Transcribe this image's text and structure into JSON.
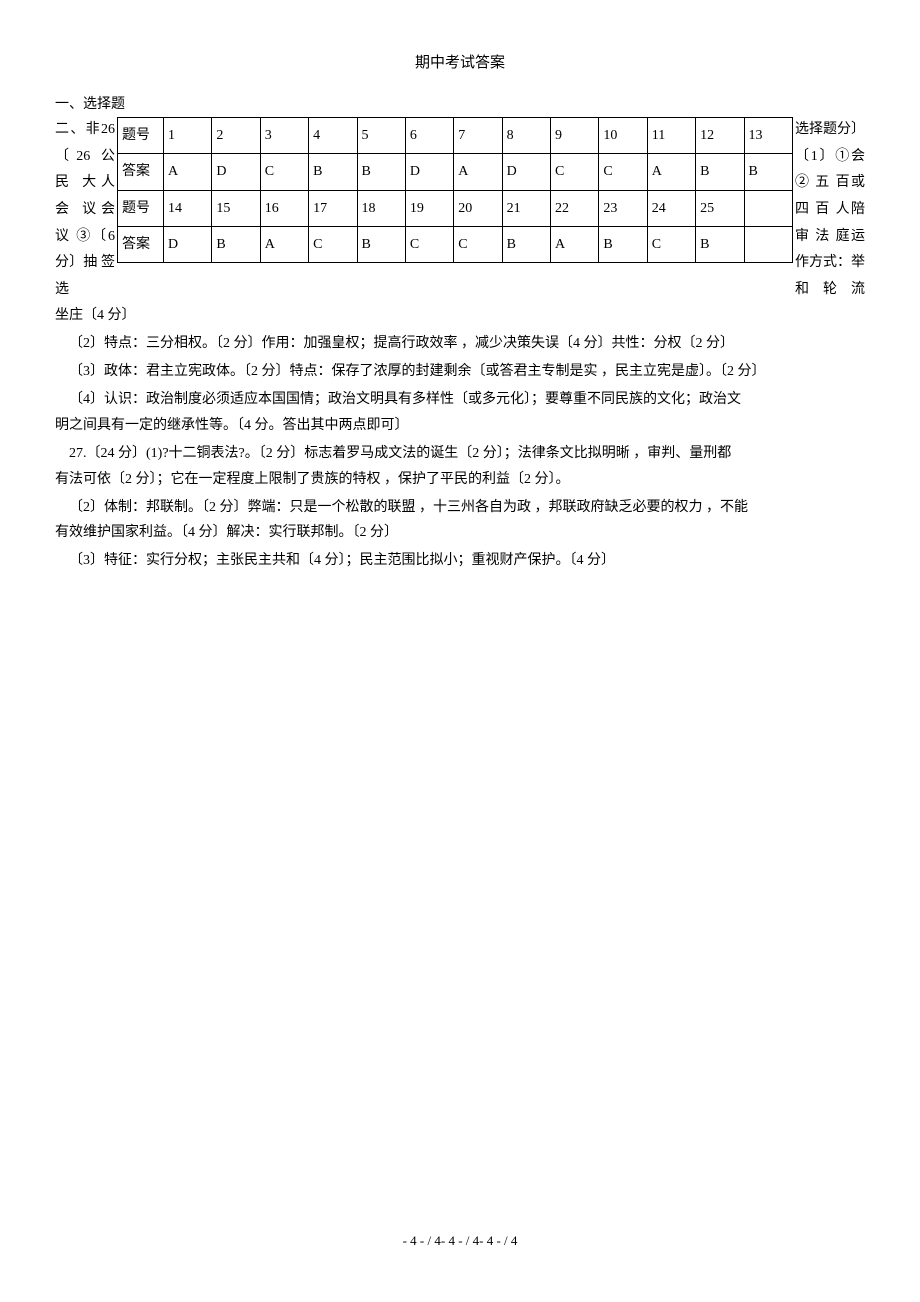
{
  "title": "期中考试答案",
  "section1_label": "一、选择题",
  "left_wrap_text": "二、非26〔26 公 民 大人 会 议会 议 ③〔6 分〕抽 签 选",
  "right_wrap_text": "选择题分〕〔1〕①会 ② 五 百或 四 百 人陪 审 法 庭运作方式：举 和 轮 流",
  "below_table": "坐庄〔4 分〕",
  "answer_table": {
    "header_label_1": "题号",
    "header_label_2": "答案",
    "row1_nums": [
      "1",
      "2",
      "3",
      "4",
      "5",
      "6",
      "7",
      "8",
      "9",
      "10",
      "11",
      "12",
      "13"
    ],
    "row1_ans": [
      "A",
      "D",
      "C",
      "B",
      "B",
      "D",
      "A",
      "D",
      "C",
      "C",
      "A",
      "B",
      "B"
    ],
    "row2_nums": [
      "14",
      "15",
      "16",
      "17",
      "18",
      "19",
      "20",
      "21",
      "22",
      "23",
      "24",
      "25",
      ""
    ],
    "row2_ans": [
      "D",
      "B",
      "A",
      "C",
      "B",
      "C",
      "C",
      "B",
      "A",
      "B",
      "C",
      "B",
      ""
    ]
  },
  "paragraphs": {
    "p2": "〔2〕特点：三分相权。〔2 分〕作用：加强皇权；提高行政效率 ，减少决策失误〔4 分〕共性：分权〔2 分〕",
    "p3": "〔3〕政体：君主立宪政体。〔2 分〕特点：保存了浓厚的封建剩余〔或答君主专制是实 ，民主立宪是虚〕。〔2 分〕",
    "p4a": "〔4〕认识：政治制度必须适应本国国情；政治文明具有多样性〔或多元化〕；要尊重不同民族的文化；政治文",
    "p4b": "明之间具有一定的继承性等。〔4 分。答出其中两点即可〕",
    "p27a": "27.〔24 分〕(1)?十二铜表法?。〔2 分〕标志着罗马成文法的诞生〔2 分〕；法律条文比拟明晰 ，审判、量刑都",
    "p27b": "有法可依〔2 分〕；它在一定程度上限制了贵族的特权 ，保护了平民的利益〔2 分〕。",
    "p27_2a": "〔2〕体制：邦联制。〔2 分〕弊端：只是一个松散的联盟 ，十三州各自为政 ，邦联政府缺乏必要的权力 ，不能",
    "p27_2b": "有效维护国家利益。〔4 分〕解决：实行联邦制。〔2 分〕",
    "p27_3": "〔3〕特征：实行分权；主张民主共和〔4 分〕；民主范围比拟小；重视财产保护。〔4 分〕"
  },
  "footer": "- 4 - / 4- 4 - / 4- 4 - / 4"
}
